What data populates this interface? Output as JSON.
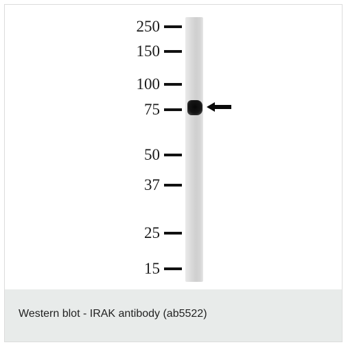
{
  "blot": {
    "markers": [
      {
        "label": "250"
      },
      {
        "label": "150"
      },
      {
        "label": "100"
      },
      {
        "label": "75"
      },
      {
        "label": "50"
      },
      {
        "label": "37"
      },
      {
        "label": "25"
      },
      {
        "label": "15"
      }
    ]
  },
  "caption": {
    "text": "Western blot - IRAK antibody (ab5522)"
  },
  "colors": {
    "caption_background": "#e8ebea",
    "band": "#0a0a0a"
  }
}
